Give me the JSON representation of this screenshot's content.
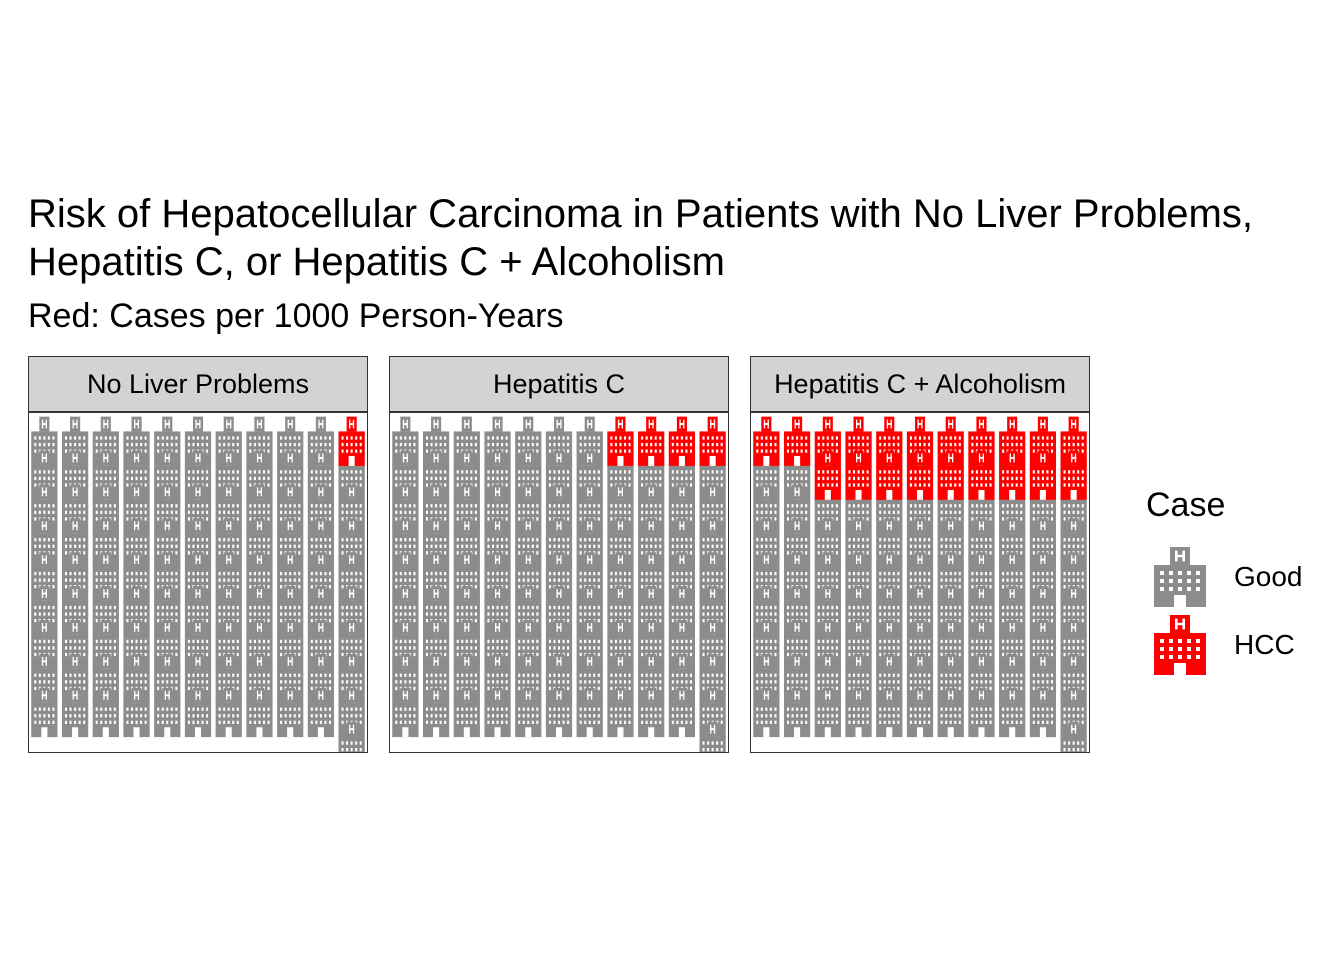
{
  "chart_data": {
    "type": "pictogram",
    "title_lines": [
      "Risk of Hepatocellular Carcinoma in Patients with No Liver Problems,",
      "Hepatitis C, or Hepatitis C + Alcoholism"
    ],
    "subtitle": "Red: Cases per 1000 Person-Years",
    "icons_per_panel": 1000,
    "grid": {
      "cols": 11,
      "icons_per_cell": 10
    },
    "panels": [
      {
        "label": "No Liver Problems",
        "hcc": 10,
        "good": 990
      },
      {
        "label": "Hepatitis C",
        "hcc": 40,
        "good": 960
      },
      {
        "label": "Hepatitis C + Alcoholism",
        "hcc": 200,
        "good": 800
      }
    ],
    "legend": {
      "title": "Case",
      "items": [
        {
          "label": "Good",
          "color": "#8c8c8c",
          "icon": "hospital-icon"
        },
        {
          "label": "HCC",
          "color": "#ff0000",
          "icon": "hospital-icon"
        }
      ]
    }
  }
}
